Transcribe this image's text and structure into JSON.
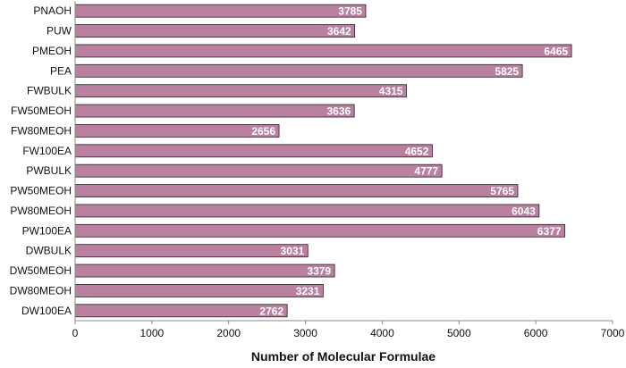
{
  "chart_data": {
    "type": "bar",
    "orientation": "horizontal",
    "categories": [
      "PNAOH",
      "PUW",
      "PMEOH",
      "PEA",
      "FWBULK",
      "FW50MEOH",
      "FW80MEOH",
      "FW100EA",
      "PWBULK",
      "PW50MEOH",
      "PW80MEOH",
      "PW100EA",
      "DWBULK",
      "DW50MEOH",
      "DW80MEOH",
      "DW100EA"
    ],
    "values": [
      3785,
      3642,
      6465,
      5825,
      4315,
      3636,
      2656,
      4652,
      4777,
      5765,
      6043,
      6377,
      3031,
      3379,
      3231,
      2762
    ],
    "value_labels": [
      "3785",
      "3642",
      "6465",
      "5825",
      "4315",
      "3636",
      "2656",
      "4652",
      "4777",
      "5765",
      "6043",
      "6377",
      "3031",
      "3379",
      "3231",
      "2762"
    ],
    "xlabel": "Number of Molecular Formulae",
    "ylabel": "",
    "xlim": [
      0,
      7000
    ],
    "xticks": [
      "0",
      "1000",
      "2000",
      "3000",
      "4000",
      "5000",
      "6000",
      "7000"
    ],
    "grid": false,
    "legend": "none",
    "colors": {
      "bar_fill": "#b9809f",
      "bar_stroke": "#222222",
      "value_text": "#ffffff",
      "axis": "#888888"
    }
  }
}
